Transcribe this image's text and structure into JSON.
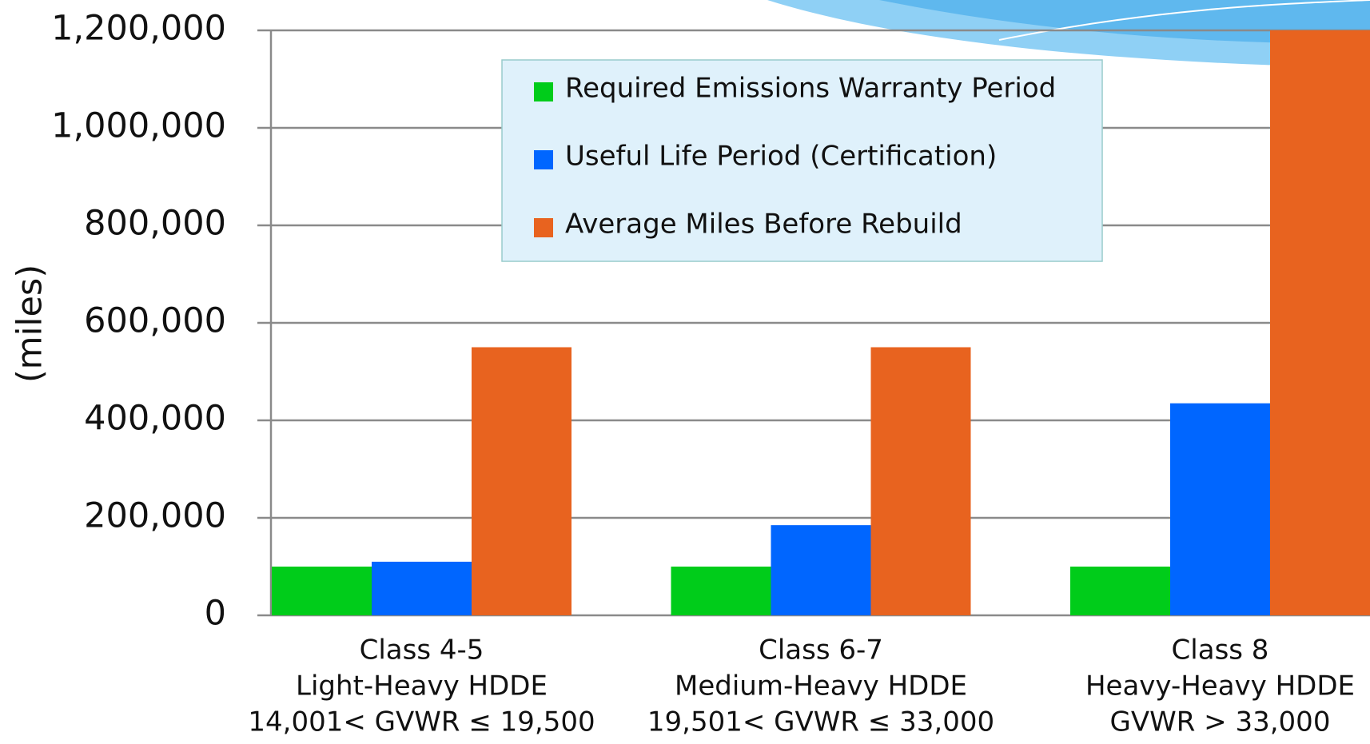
{
  "chart_data": {
    "type": "bar",
    "y_label": "(miles)",
    "categories": [
      [
        "Class 4-5",
        "Light-Heavy HDDE",
        "14,001< GVWR ≤ 19,500"
      ],
      [
        "Class 6-7",
        "Medium-Heavy HDDE",
        "19,501< GVWR ≤ 33,000"
      ],
      [
        "Class 8",
        "Heavy-Heavy HDDE",
        "GVWR > 33,000"
      ]
    ],
    "series": [
      {
        "name": "Required Emissions Warranty Period",
        "color": "#00cc1a",
        "values": [
          100000,
          100000,
          100000
        ]
      },
      {
        "name": "Useful Life Period (Certification)",
        "color": "#0066ff",
        "values": [
          110000,
          185000,
          435000
        ]
      },
      {
        "name": "Average Miles Before Rebuild",
        "color": "#e8631f",
        "values": [
          550000,
          550000,
          1200000
        ]
      }
    ],
    "ylim": [
      0,
      1200000
    ],
    "yticks": [
      0,
      {
        "value": 200000,
        "label": "200,000"
      },
      {
        "value": 400000,
        "label": "400,000"
      },
      {
        "value": 600000,
        "label": "600,000"
      },
      {
        "value": 800000,
        "label": "800,000"
      },
      {
        "value": 1000000,
        "label": "1,000,000"
      },
      {
        "value": 1200000,
        "label": "1,200,000"
      }
    ],
    "grid": true
  }
}
